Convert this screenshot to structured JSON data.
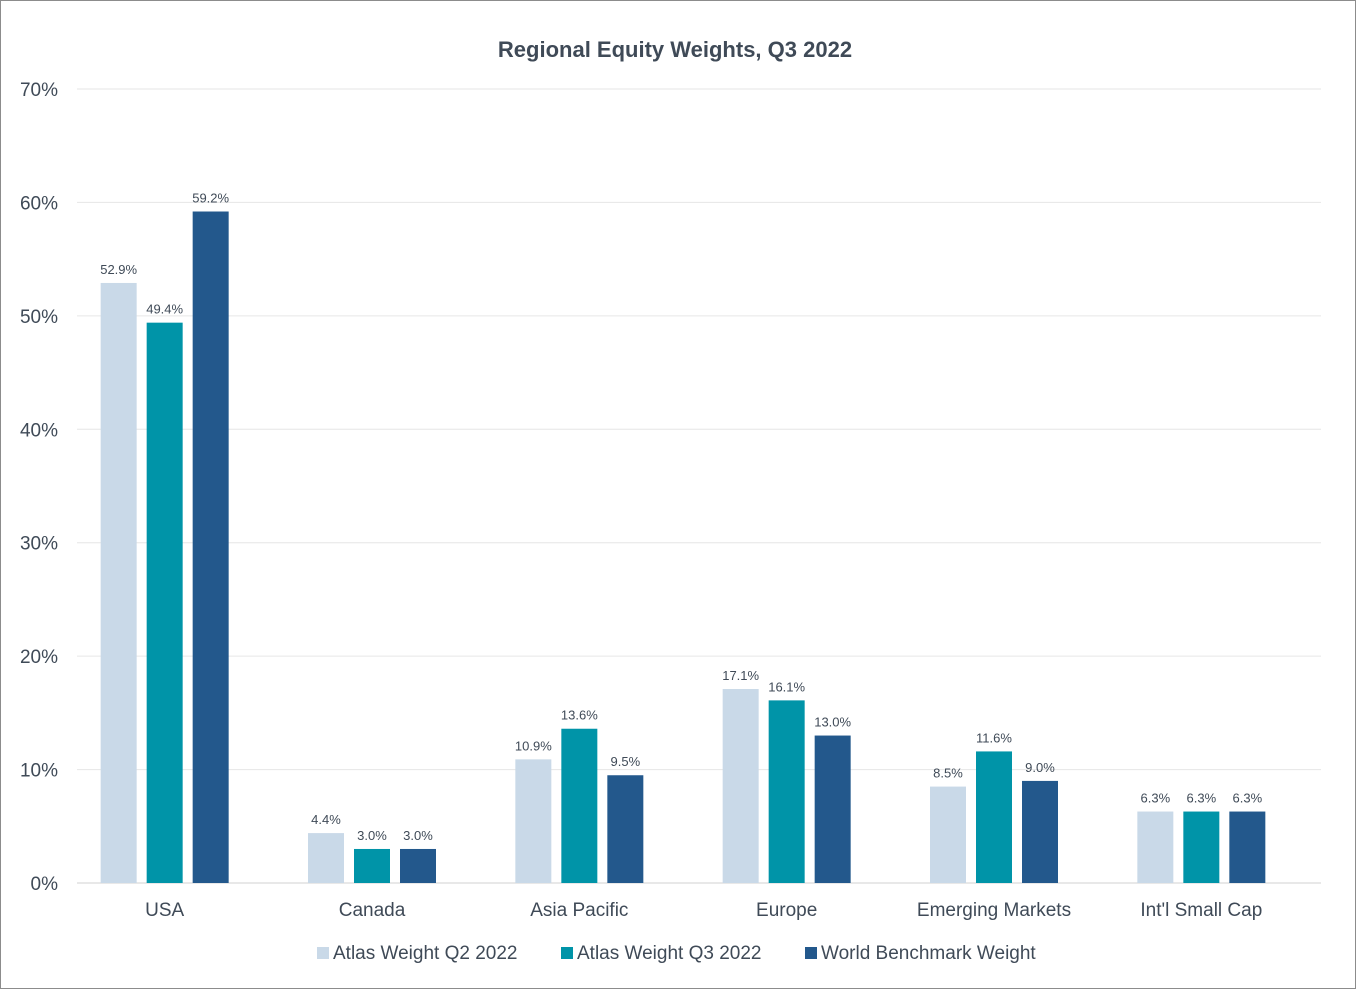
{
  "chart_data": {
    "type": "bar",
    "title": "Regional Equity Weights, Q3 2022",
    "xlabel": "",
    "ylabel": "",
    "ylim": [
      0,
      70
    ],
    "yticks": [
      "0%",
      "10%",
      "20%",
      "30%",
      "40%",
      "50%",
      "60%",
      "70%"
    ],
    "categories": [
      "USA",
      "Canada",
      "Asia Pacific",
      "Europe",
      "Emerging Markets",
      "Int'l Small Cap"
    ],
    "series": [
      {
        "name": "Atlas Weight Q2 2022",
        "color": "#c9d9e8",
        "values": [
          52.9,
          4.4,
          10.9,
          17.1,
          8.5,
          6.3
        ],
        "labels": [
          "52.9%",
          "4.4%",
          "10.9%",
          "17.1%",
          "8.5%",
          "6.3%"
        ]
      },
      {
        "name": "Atlas Weight Q3 2022",
        "color": "#0094a8",
        "values": [
          49.4,
          3.0,
          13.6,
          16.1,
          11.6,
          6.3
        ],
        "labels": [
          "49.4%",
          "3.0%",
          "13.6%",
          "16.1%",
          "11.6%",
          "6.3%"
        ]
      },
      {
        "name": "World Benchmark Weight",
        "color": "#23588c",
        "values": [
          59.2,
          3.0,
          9.5,
          13.0,
          9.0,
          6.3
        ],
        "labels": [
          "59.2%",
          "3.0%",
          "9.5%",
          "13.0%",
          "9.0%",
          "6.3%"
        ]
      }
    ],
    "legend_position": "bottom",
    "grid": true
  }
}
